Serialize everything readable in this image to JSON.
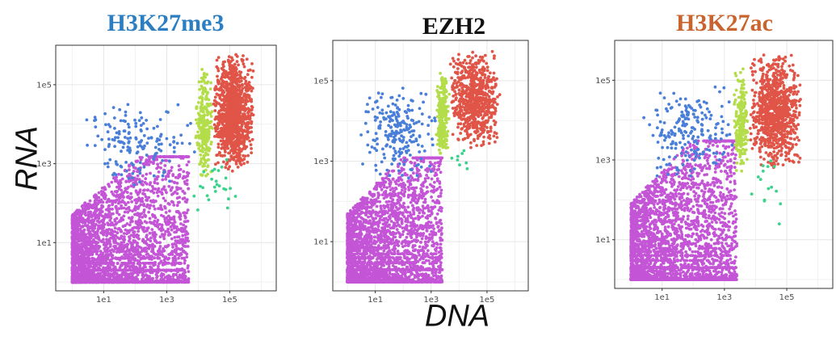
{
  "chart_data": [
    {
      "type": "scatter",
      "title": "H3K27me3",
      "title_color": "#2a7ec1",
      "xlabel": "DNA",
      "ylabel": "RNA",
      "log_x": true,
      "log_y": true,
      "xlim": [
        0.3,
        3000000
      ],
      "ylim": [
        0.6,
        1000000
      ],
      "x_ticks": [
        10,
        1000,
        100000
      ],
      "x_tick_labels": [
        "1e1",
        "1e3",
        "1e5"
      ],
      "y_ticks": [
        10,
        1000,
        100000
      ],
      "y_tick_labels": [
        "1e1",
        "1e3",
        "1e5"
      ],
      "grid": true,
      "clusters": [
        {
          "color": "#c355d6",
          "x_range": [
            1,
            5000
          ],
          "y_range": [
            1,
            1500
          ],
          "count": 3500
        },
        {
          "color": "#4a7fd9",
          "x_range": [
            2,
            8000
          ],
          "y_range": [
            200,
            50000
          ],
          "count": 160
        },
        {
          "color": "#b4dd4b",
          "x_range": [
            8000,
            30000
          ],
          "y_range": [
            400,
            300000
          ],
          "count": 260
        },
        {
          "color": "#e05548",
          "x_range": [
            30000,
            600000
          ],
          "y_range": [
            600,
            600000
          ],
          "count": 1100
        },
        {
          "color": "#3bd38b",
          "x_range": [
            5000,
            200000
          ],
          "y_range": [
            20,
            2000
          ],
          "count": 25
        }
      ]
    },
    {
      "type": "scatter",
      "title": "EZH2",
      "title_color": "#111111",
      "log_x": true,
      "log_y": true,
      "xlim": [
        0.3,
        3000000
      ],
      "ylim": [
        0.6,
        1000000
      ],
      "x_ticks": [
        10,
        1000,
        100000
      ],
      "x_tick_labels": [
        "1e1",
        "1e3",
        "1e5"
      ],
      "y_ticks": [
        10,
        1000,
        100000
      ],
      "y_tick_labels": [
        "1e1",
        "1e3",
        "1e5"
      ],
      "grid": true,
      "clusters": [
        {
          "color": "#c355d6",
          "x_range": [
            1,
            2500
          ],
          "y_range": [
            1,
            1200
          ],
          "count": 3300
        },
        {
          "color": "#4a7fd9",
          "x_range": [
            2,
            2000
          ],
          "y_range": [
            300,
            100000
          ],
          "count": 220
        },
        {
          "color": "#b4dd4b",
          "x_range": [
            1500,
            4500
          ],
          "y_range": [
            1000,
            200000
          ],
          "count": 240
        },
        {
          "color": "#e05548",
          "x_range": [
            4500,
            300000
          ],
          "y_range": [
            2000,
            600000
          ],
          "count": 700
        },
        {
          "color": "#3bd38b",
          "x_range": [
            5000,
            40000
          ],
          "y_range": [
            300,
            2000
          ],
          "count": 8
        }
      ]
    },
    {
      "type": "scatter",
      "title": "H3K27ac",
      "title_color": "#c9642e",
      "log_x": true,
      "log_y": true,
      "xlim": [
        0.3,
        3000000
      ],
      "ylim": [
        0.6,
        1000000
      ],
      "x_ticks": [
        10,
        1000,
        100000
      ],
      "x_tick_labels": [
        "1e1",
        "1e3",
        "1e5"
      ],
      "y_ticks": [
        10,
        1000,
        100000
      ],
      "y_tick_labels": [
        "1e1",
        "1e3",
        "1e5"
      ],
      "grid": true,
      "clusters": [
        {
          "color": "#c355d6",
          "x_range": [
            1,
            2500
          ],
          "y_range": [
            1,
            3000
          ],
          "count": 3300
        },
        {
          "color": "#4a7fd9",
          "x_range": [
            2,
            2500
          ],
          "y_range": [
            300,
            100000
          ],
          "count": 200
        },
        {
          "color": "#b4dd4b",
          "x_range": [
            2000,
            6000
          ],
          "y_range": [
            400,
            200000
          ],
          "count": 220
        },
        {
          "color": "#e05548",
          "x_range": [
            6000,
            300000
          ],
          "y_range": [
            600,
            500000
          ],
          "count": 900
        },
        {
          "color": "#3bd38b",
          "x_range": [
            5000,
            100000
          ],
          "y_range": [
            20,
            2000
          ],
          "count": 15
        }
      ]
    }
  ]
}
